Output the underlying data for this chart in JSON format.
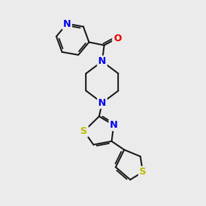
{
  "bg_color": "#ebebeb",
  "bond_color": "#1a1a1a",
  "N_color": "#0000ee",
  "O_color": "#ee0000",
  "S_color": "#bbbb00",
  "line_width": 1.6,
  "figsize": [
    3.0,
    3.0
  ],
  "dpi": 100,
  "xlim": [
    0,
    10
  ],
  "ylim": [
    0,
    10
  ]
}
